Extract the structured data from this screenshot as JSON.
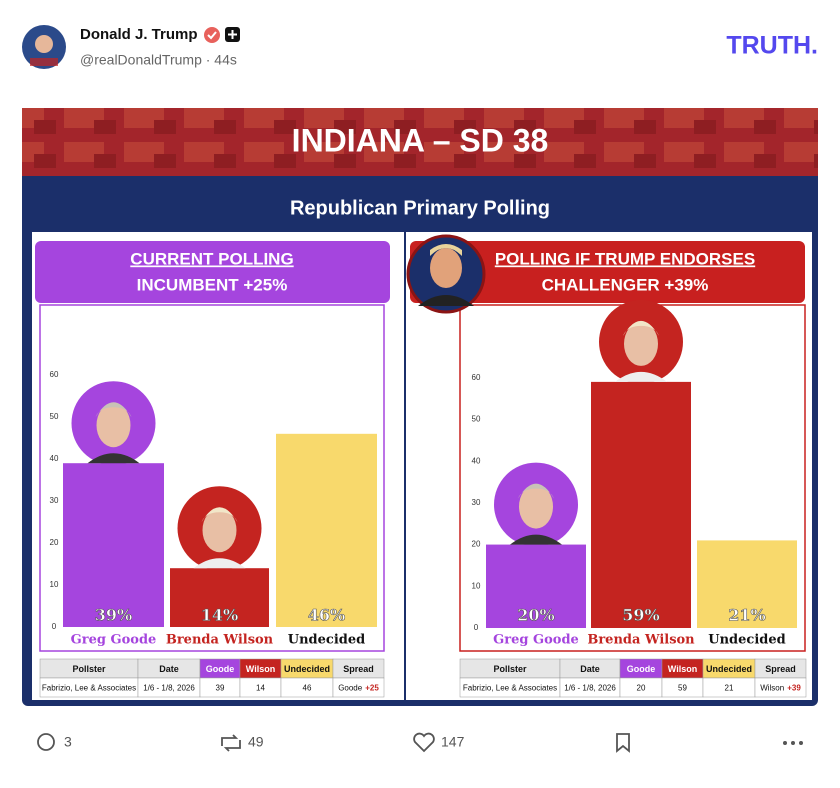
{
  "post": {
    "author": "Donald J. Trump",
    "handle": "@realDonaldTrump · 44s",
    "logo": "TRUTH.",
    "image": {
      "title": "INDIANA – SD 38",
      "subtitle": "Republican Primary Polling"
    },
    "actions": {
      "replies": "3",
      "reposts": "49",
      "likes": "147"
    }
  },
  "chart_data": [
    {
      "type": "bar",
      "heading": [
        "CURRENT POLLING",
        "INCUMBENT +25%"
      ],
      "categories": [
        "Greg Goode",
        "Brenda Wilson",
        "Undecided"
      ],
      "values": [
        39,
        14,
        46
      ],
      "value_labels": [
        "39%",
        "14%",
        "46%"
      ],
      "colors": [
        "#a545de",
        "#c42420",
        "#f8d96c"
      ],
      "label_colors": [
        "#a545de",
        "#c42420",
        "#111111"
      ],
      "ylim": [
        0,
        65
      ],
      "yticks": [
        0,
        10,
        20,
        30,
        40,
        50,
        60
      ],
      "grid": false,
      "table": {
        "header": [
          "Pollster",
          "Date",
          "Goode",
          "Wilson",
          "Undecided",
          "Spread"
        ],
        "rows": [
          [
            "Fabrizio, Lee & Associates",
            "1/6 - 1/8, 2026",
            "39",
            "14",
            "46",
            [
              "Goode",
              "+25"
            ]
          ]
        ]
      }
    },
    {
      "type": "bar",
      "heading": [
        "POLLING IF TRUMP ENDORSES",
        "CHALLENGER +39%"
      ],
      "categories": [
        "Greg Goode",
        "Brenda Wilson",
        "Undecided"
      ],
      "values": [
        20,
        59,
        21
      ],
      "value_labels": [
        "20%",
        "59%",
        "21%"
      ],
      "colors": [
        "#a545de",
        "#c42420",
        "#f8d96c"
      ],
      "label_colors": [
        "#a545de",
        "#c42420",
        "#111111"
      ],
      "ylim": [
        0,
        70
      ],
      "yticks": [
        0,
        10,
        20,
        30,
        40,
        50,
        60
      ],
      "grid": false,
      "table": {
        "header": [
          "Pollster",
          "Date",
          "Goode",
          "Wilson",
          "Undecided",
          "Spread"
        ],
        "rows": [
          [
            "Fabrizio, Lee & Associates",
            "1/6 - 1/8, 2026",
            "20",
            "59",
            "21",
            [
              "Wilson",
              "+39"
            ]
          ]
        ]
      }
    }
  ]
}
